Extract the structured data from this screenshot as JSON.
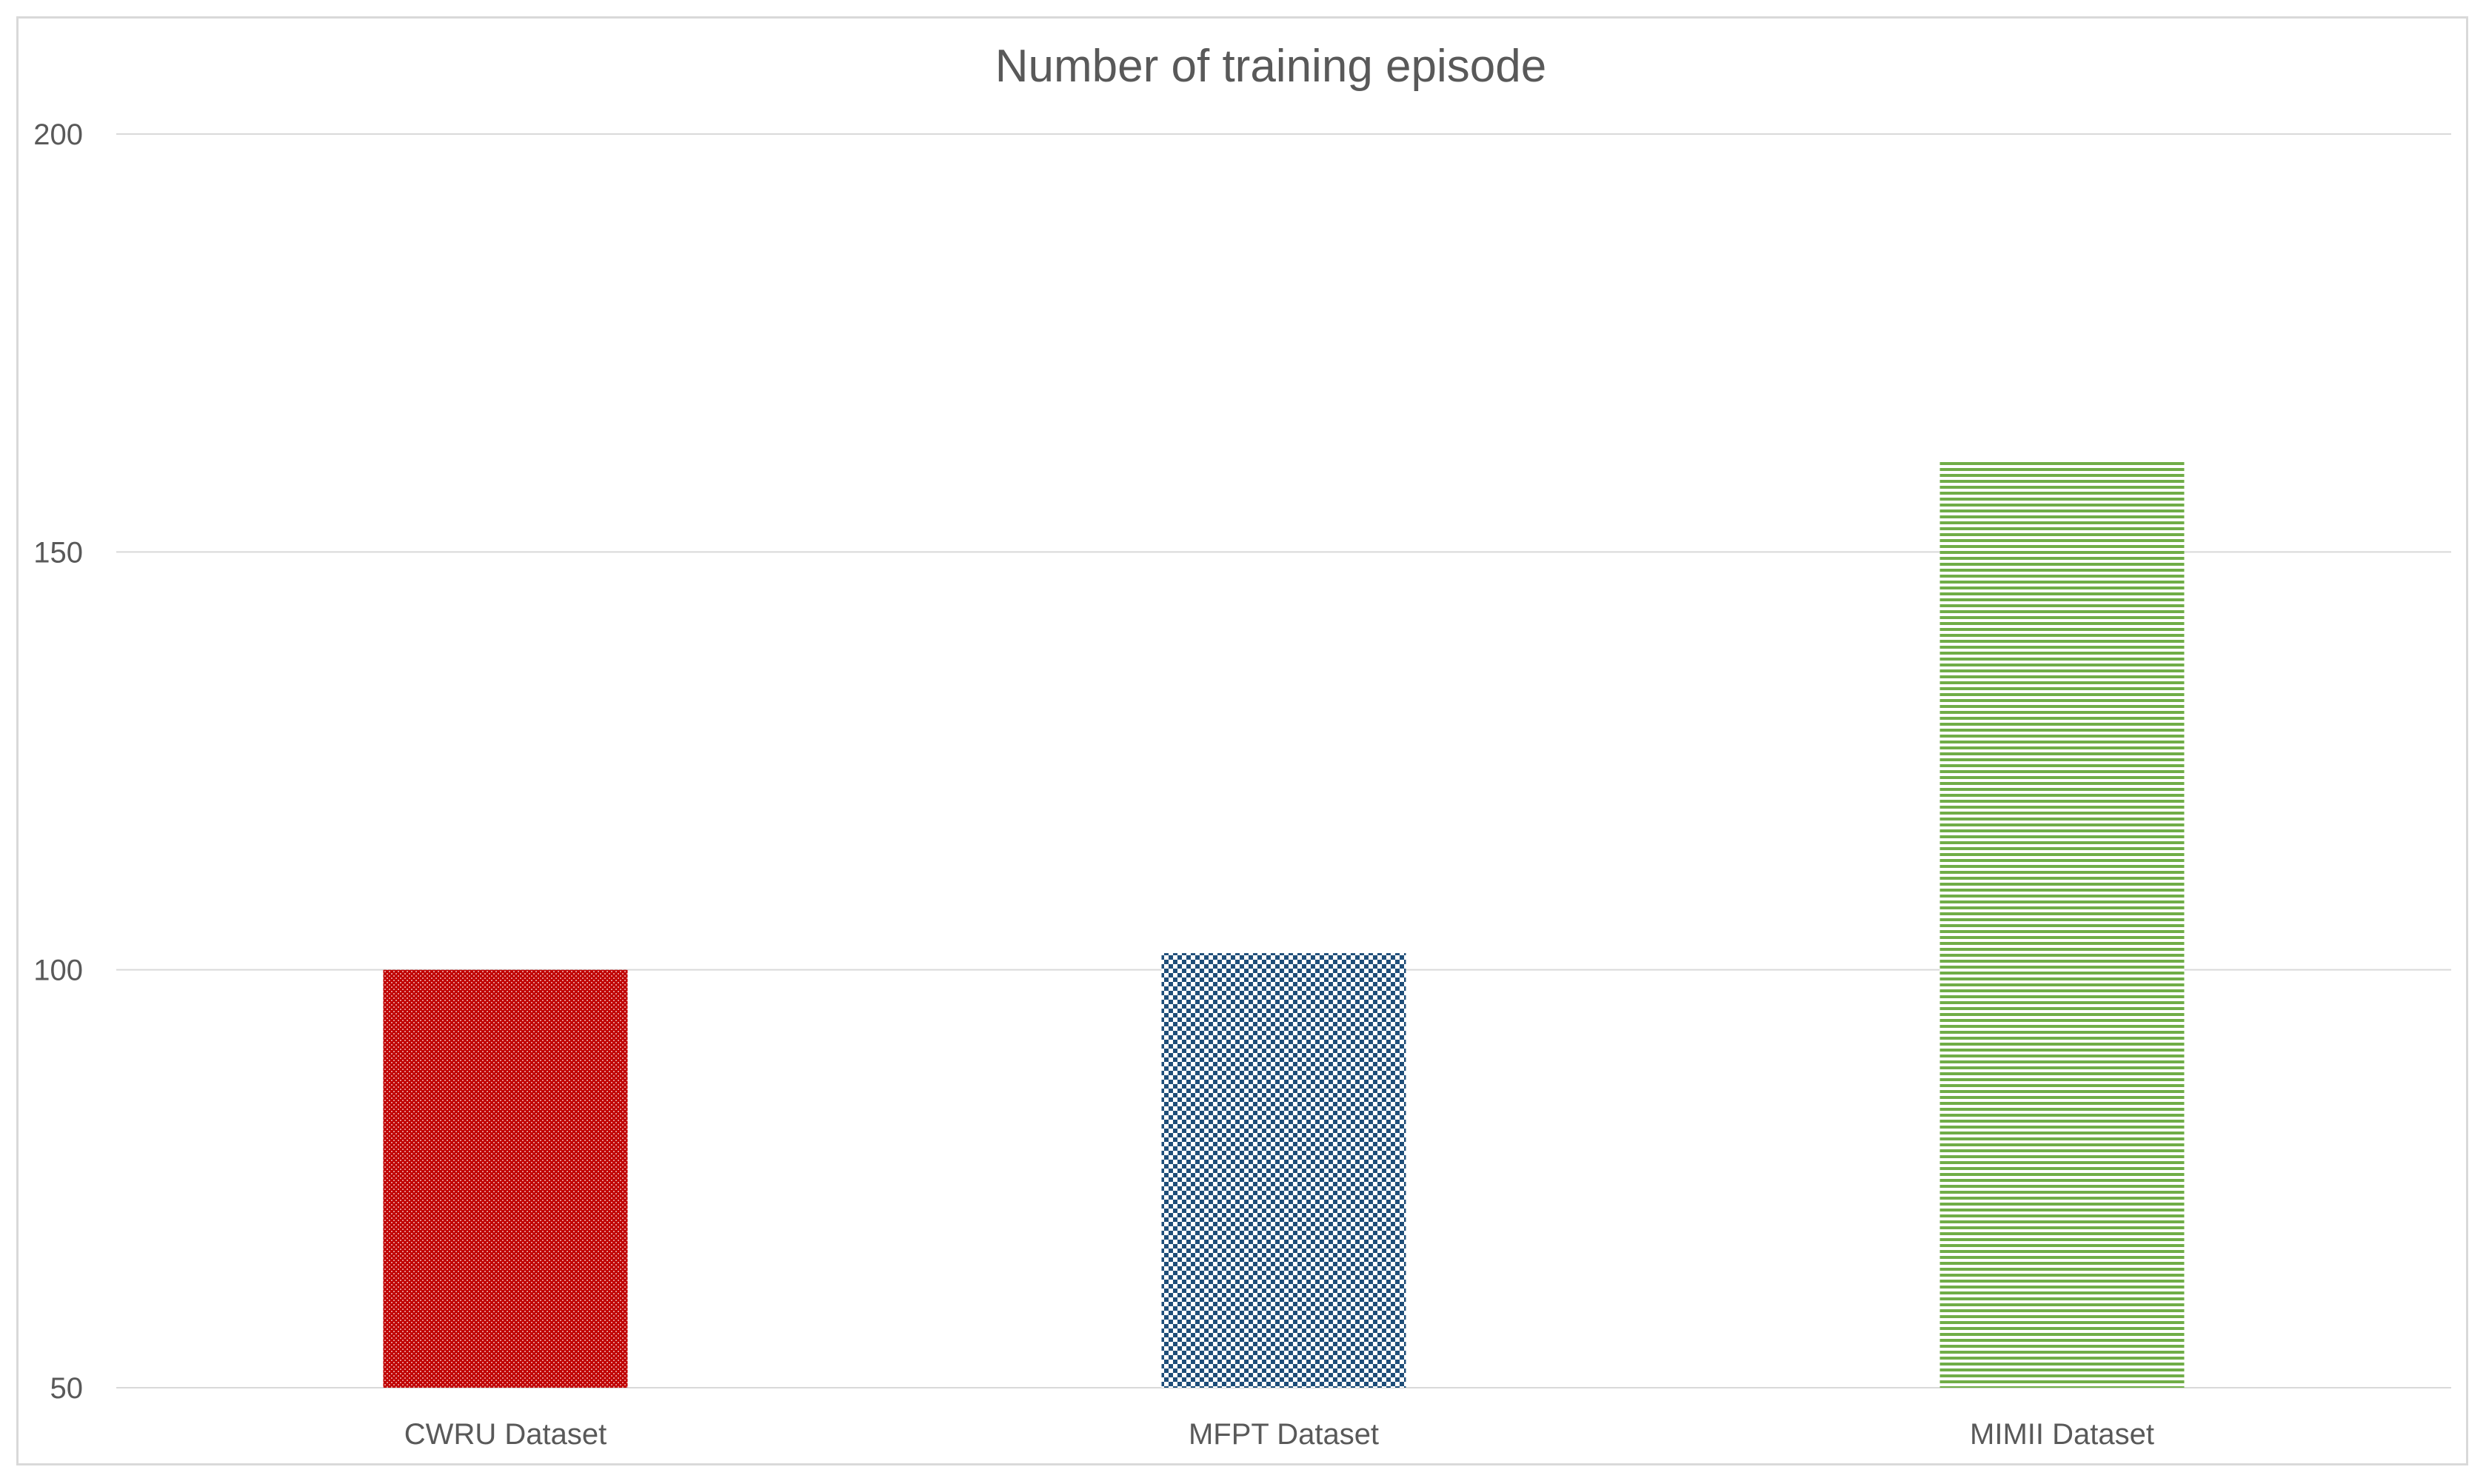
{
  "chart_data": {
    "type": "bar",
    "title": "Number of training episode",
    "xlabel": "",
    "ylabel": "",
    "categories": [
      "CWRU Dataset",
      "MFPT Dataset",
      "MIMII Dataset"
    ],
    "values": [
      100,
      102,
      161
    ],
    "ylim": [
      50,
      200
    ],
    "yticks": [
      50,
      100,
      150,
      200
    ],
    "grid": true,
    "legend": "none",
    "colors": [
      "#c00000",
      "#1f4e79",
      "#70ad47"
    ],
    "patterns": [
      "dense-dots",
      "checkerboard",
      "horizontal-lines"
    ]
  }
}
